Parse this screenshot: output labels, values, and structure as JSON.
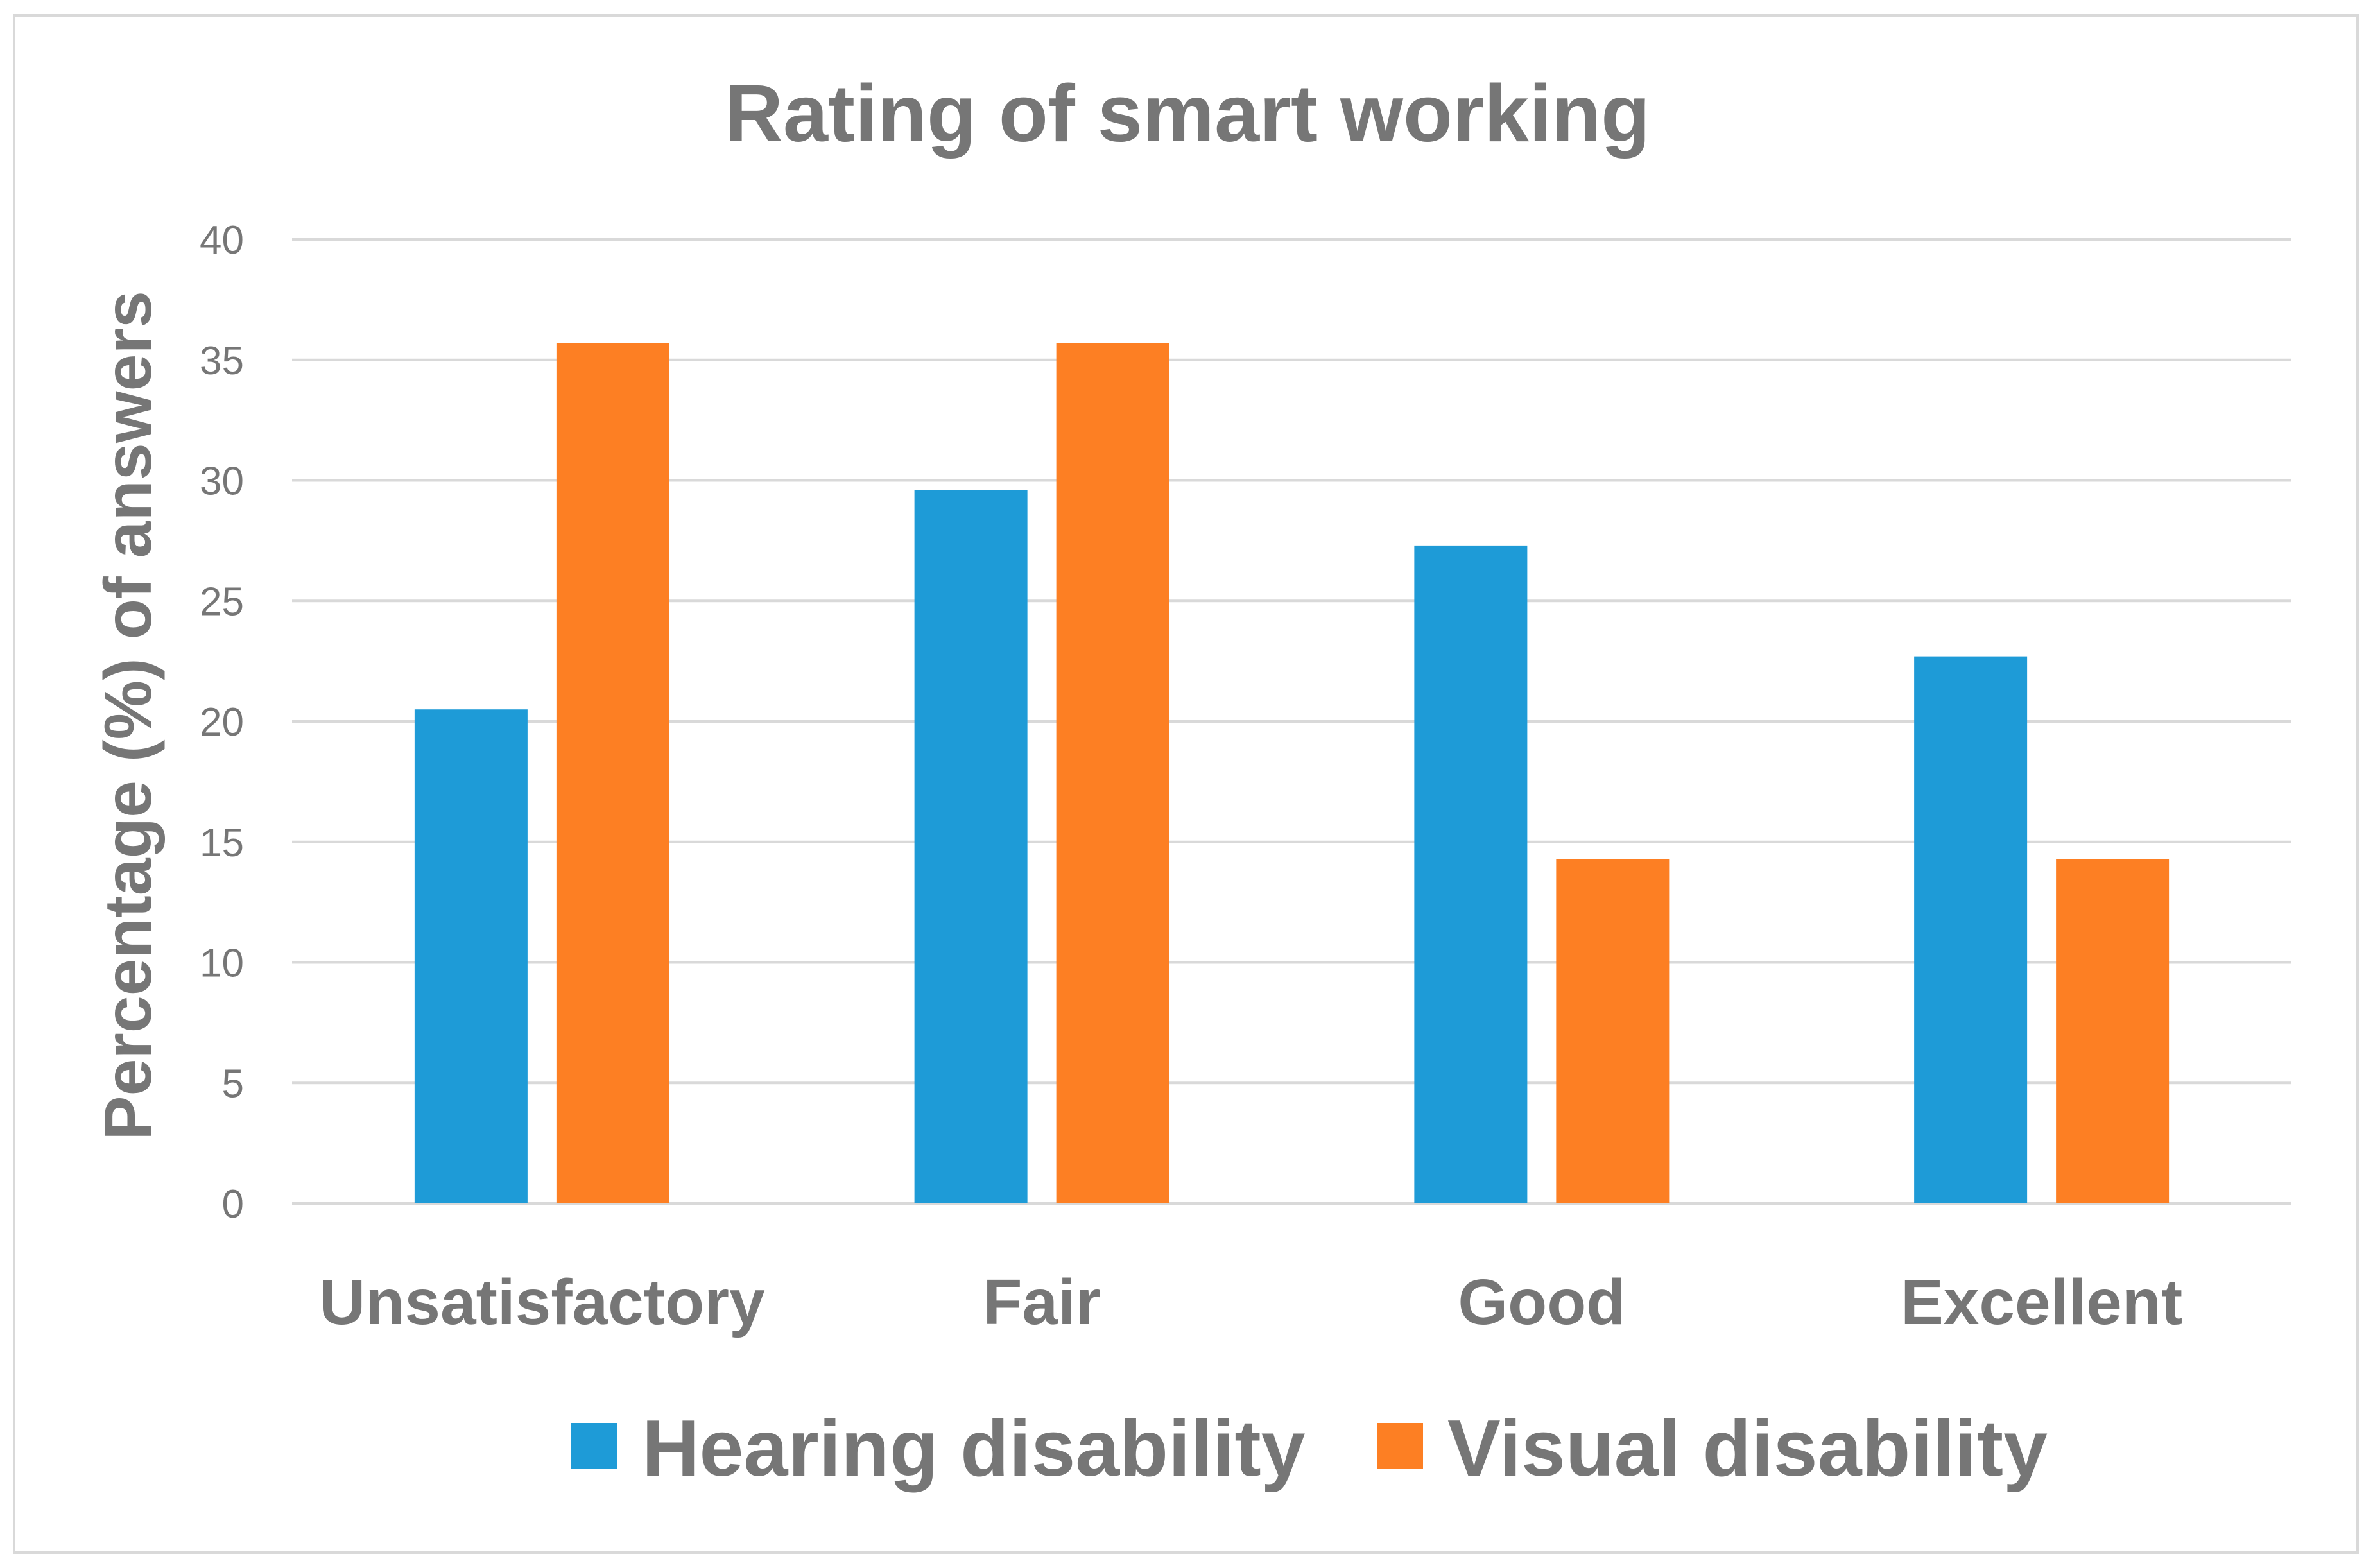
{
  "chart_data": {
    "type": "bar",
    "title": "Rating of smart working",
    "xlabel": "",
    "ylabel": "Percentage (%) of answers",
    "categories": [
      "Unsatisfactory",
      "Fair",
      "Good",
      "Excellent"
    ],
    "series": [
      {
        "name": "Hearing disability",
        "color": "#1e9bd7",
        "values": [
          20.5,
          29.6,
          27.3,
          22.7
        ]
      },
      {
        "name": "Visual disability",
        "color": "#fd7f23",
        "values": [
          35.7,
          35.7,
          14.3,
          14.3
        ]
      }
    ],
    "ylim": [
      0,
      40
    ],
    "yticks": [
      "0",
      "5",
      "10",
      "15",
      "20",
      "25",
      "30",
      "35",
      "40"
    ],
    "grid": true,
    "legend": "bottom"
  }
}
